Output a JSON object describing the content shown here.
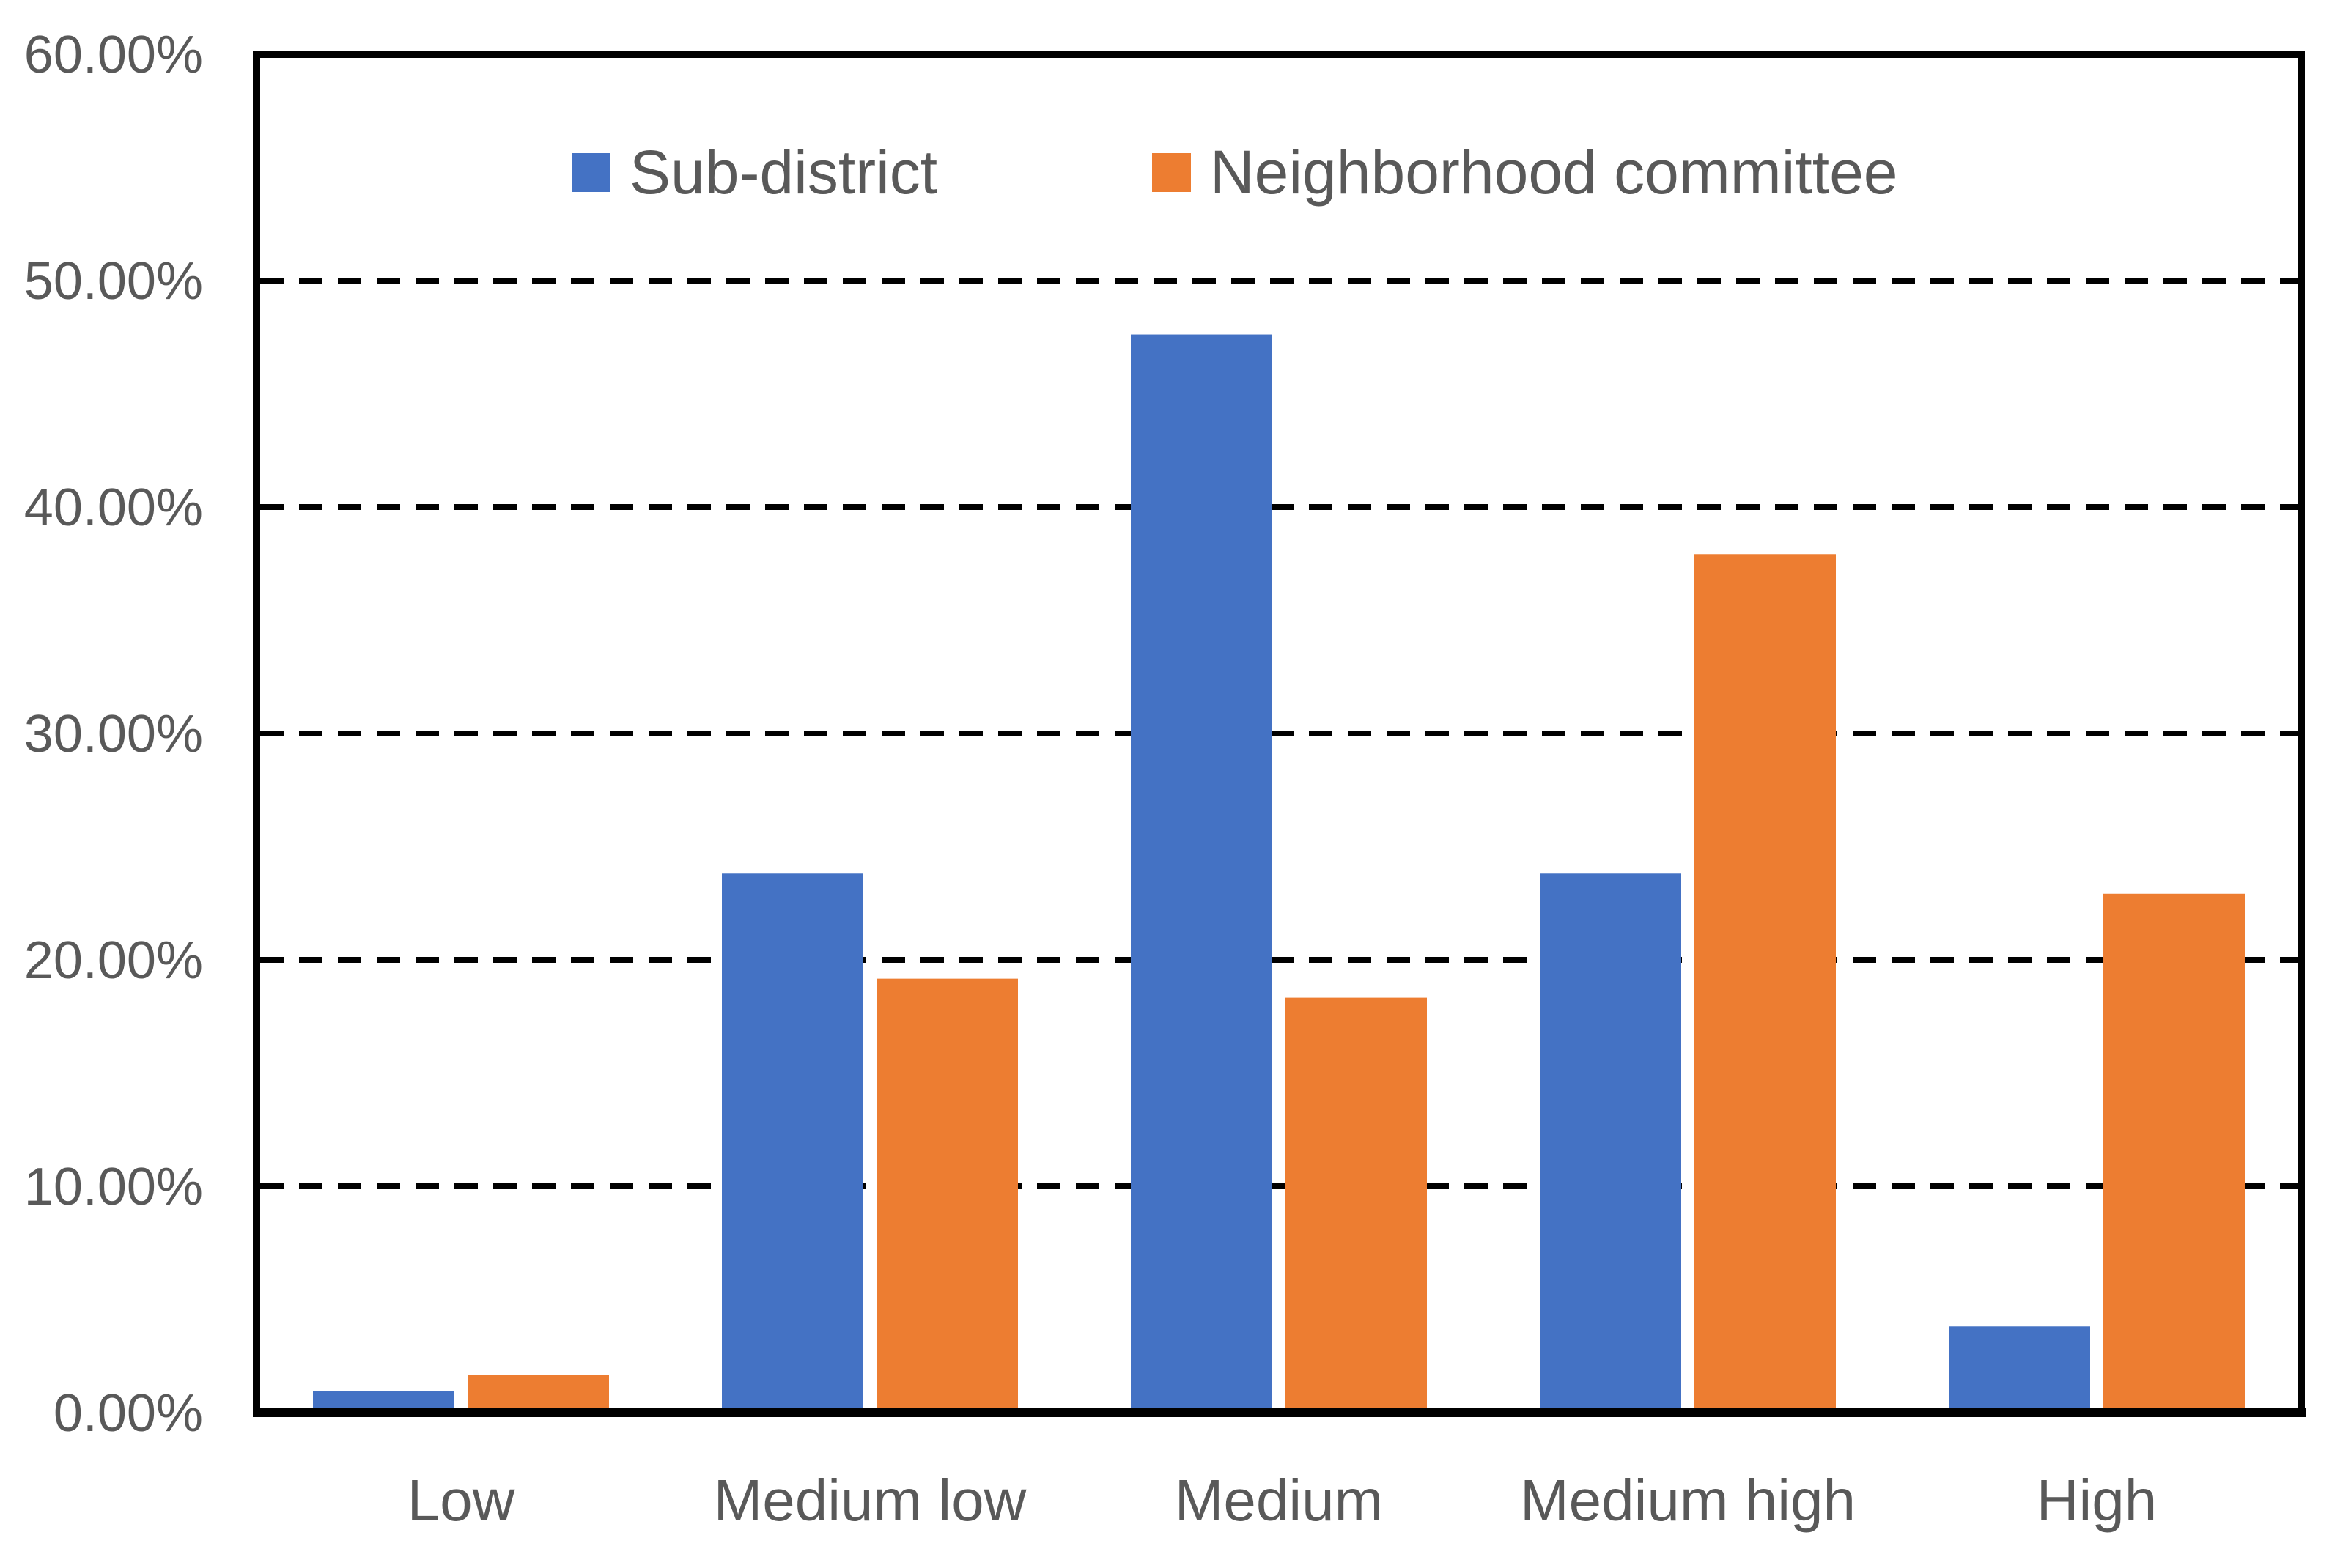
{
  "chart_data": {
    "type": "bar",
    "title": "",
    "categories": [
      "Low",
      "Medium low",
      "Medium",
      "Medium high",
      "High"
    ],
    "series": [
      {
        "name": "Sub-district",
        "color": "#4472C4",
        "values": [
          0.95,
          23.81,
          47.62,
          23.81,
          3.81
        ]
      },
      {
        "name": "Neighborhood committee",
        "color": "#ED7D31",
        "values": [
          1.67,
          19.17,
          18.33,
          37.92,
          22.92
        ]
      }
    ],
    "y_axis": {
      "min": 0,
      "max": 60,
      "step": 10,
      "tick_labels": [
        "0.00%",
        "10.00%",
        "20.00%",
        "30.00%",
        "40.00%",
        "50.00%",
        "60.00%"
      ]
    },
    "x_axis": {
      "label": ""
    },
    "legend_position": "top-center",
    "grid": "horizontal-dashed",
    "colors": {
      "axis": "#000000",
      "gridline": "#000000",
      "text": "#595959",
      "background": "#ffffff"
    }
  }
}
